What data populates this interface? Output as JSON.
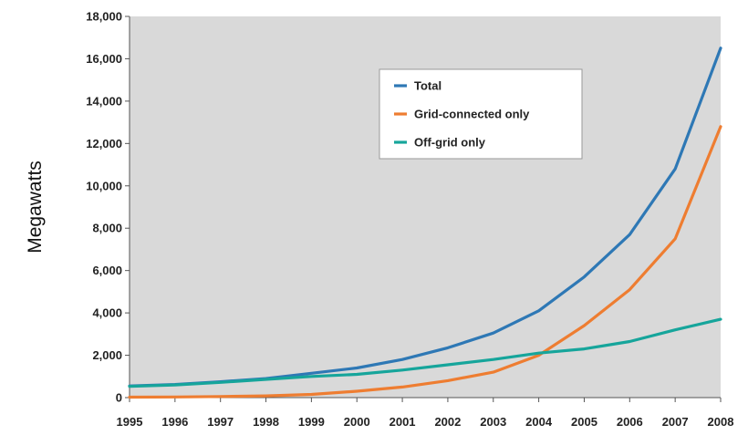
{
  "chart_data": {
    "type": "line",
    "title": "",
    "xlabel": "",
    "ylabel": "Megawatts",
    "x": [
      "1995",
      "1996",
      "1997",
      "1998",
      "1999",
      "2000",
      "2001",
      "2002",
      "2003",
      "2004",
      "2005",
      "2006",
      "2007",
      "2008"
    ],
    "ylim": [
      0,
      18000
    ],
    "yticks": [
      0,
      2000,
      4000,
      6000,
      8000,
      10000,
      12000,
      14000,
      16000,
      18000
    ],
    "ytick_labels": [
      "0",
      "2,000",
      "4,000",
      "6,000",
      "8,000",
      "10,000",
      "12,000",
      "14,000",
      "16,000",
      "18,000"
    ],
    "grid": false,
    "background": "#d9d9d9",
    "legend_position": "top-center",
    "series": [
      {
        "name": "Total",
        "color": "#2e78b5",
        "values": [
          550,
          620,
          750,
          900,
          1150,
          1400,
          1800,
          2350,
          3050,
          4100,
          5700,
          7700,
          10800,
          16500
        ]
      },
      {
        "name": "Grid-connected only",
        "color": "#ee7d31",
        "values": [
          20,
          30,
          50,
          80,
          150,
          300,
          500,
          800,
          1200,
          2000,
          3400,
          5100,
          7500,
          12800
        ]
      },
      {
        "name": "Off-grid only",
        "color": "#16a59b",
        "values": [
          530,
          600,
          720,
          860,
          1000,
          1100,
          1300,
          1550,
          1800,
          2100,
          2300,
          2650,
          3200,
          3700
        ]
      }
    ]
  }
}
